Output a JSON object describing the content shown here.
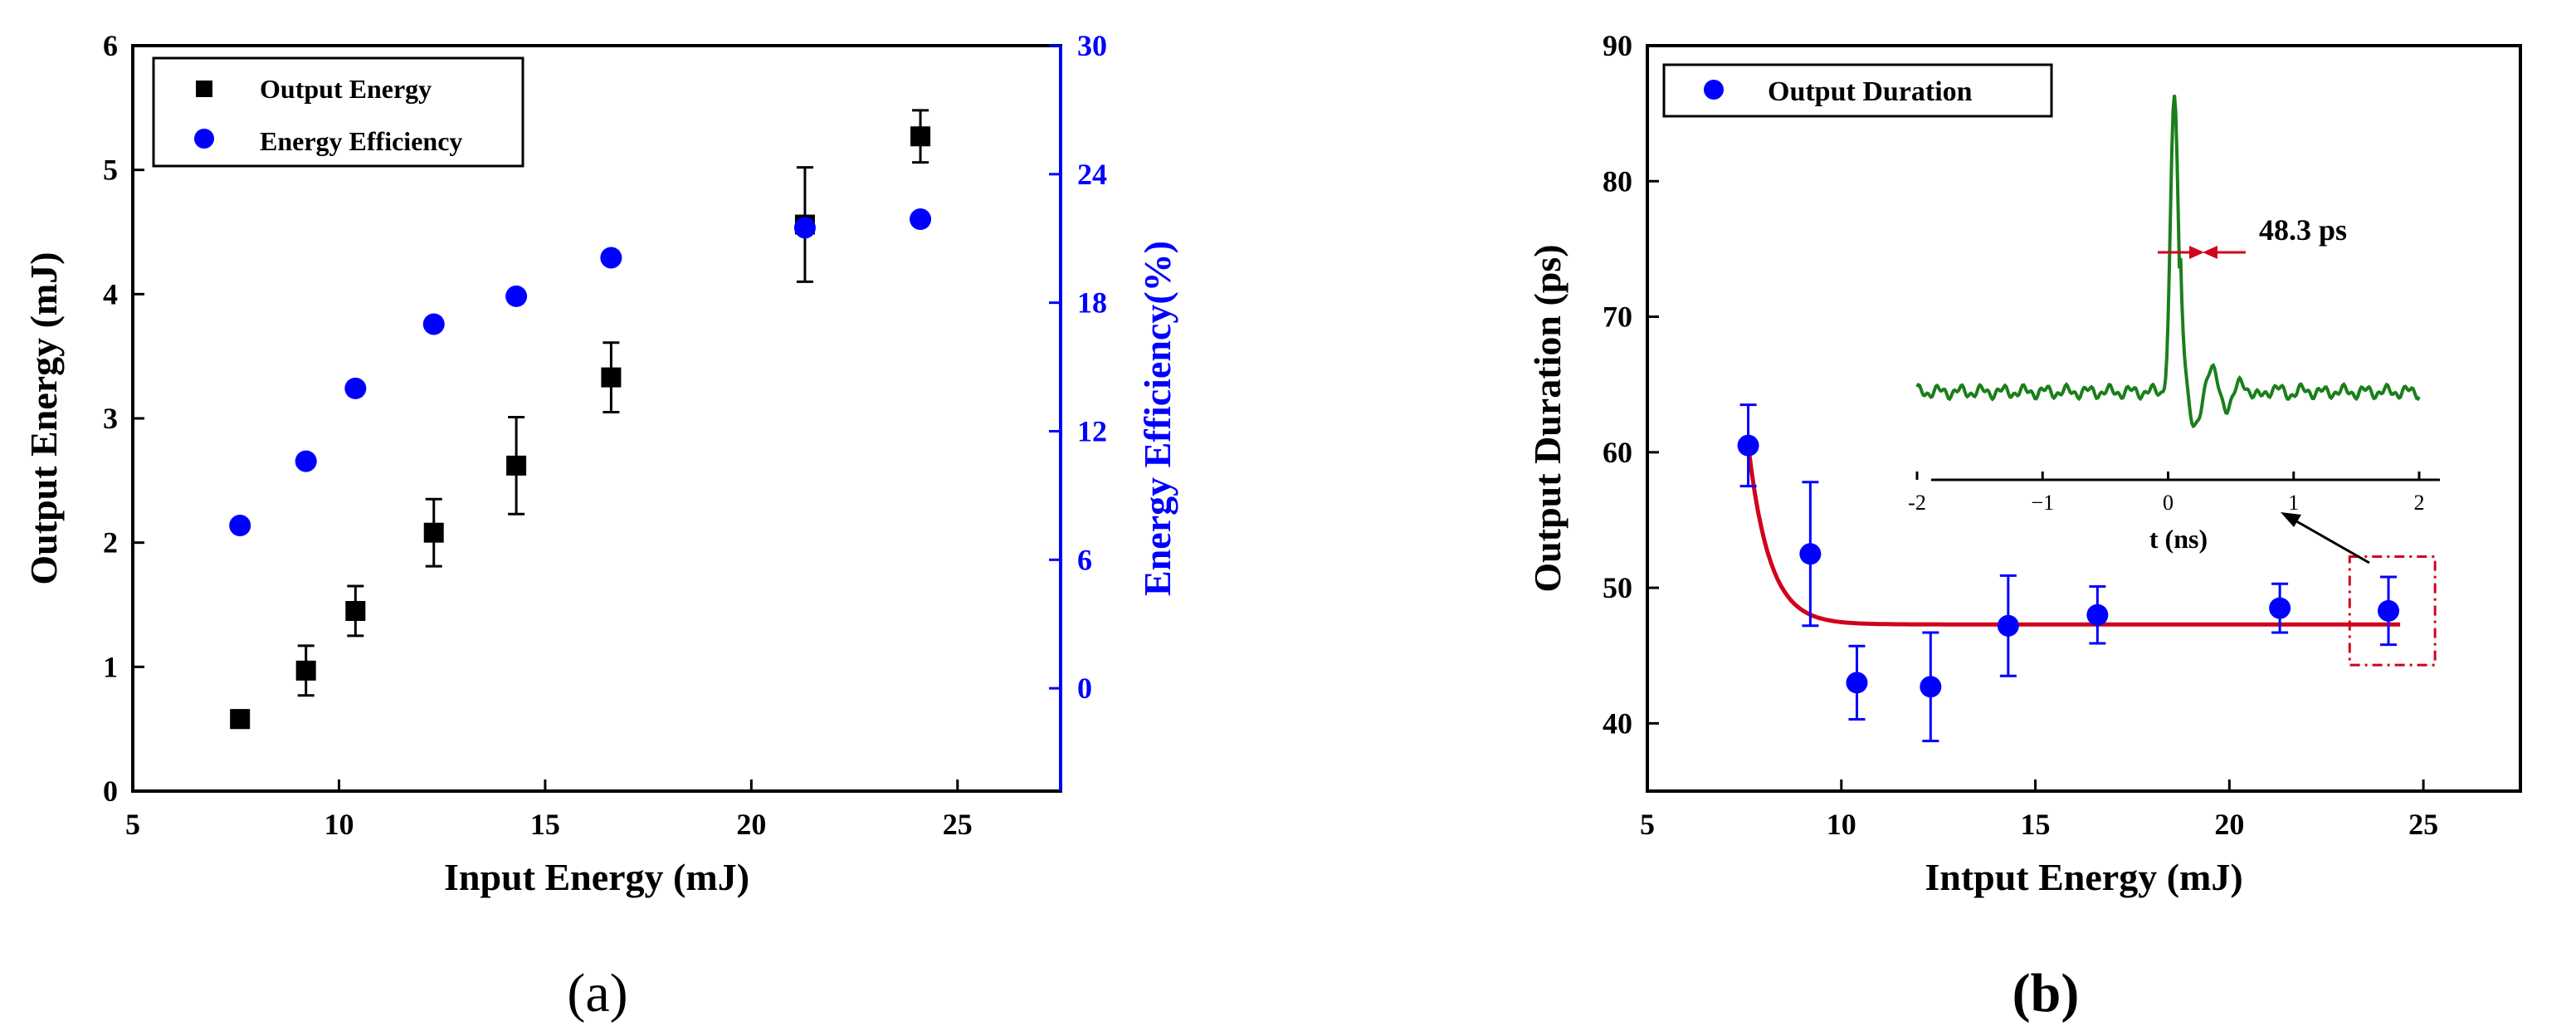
{
  "panel_labels": {
    "a": "(a)",
    "b": "(b)"
  },
  "colors": {
    "black": "#000000",
    "blue": "#0000ff",
    "red": "#d0021b",
    "green": "#1a7f1a",
    "frame": "#000000"
  },
  "chart_data": [
    {
      "id": "a",
      "type": "scatter",
      "xlabel": "Input Energy (mJ)",
      "ylabel": "Output Energy (mJ)",
      "y2label": "Energy Efficiency(%)",
      "xlim": [
        5,
        27.5
      ],
      "ylim": [
        0,
        6
      ],
      "y2lim": [
        -4.8,
        30
      ],
      "xticks": [
        5,
        10,
        15,
        20,
        25
      ],
      "yticks": [
        0,
        1,
        2,
        3,
        4,
        5,
        6
      ],
      "y2ticks": [
        0,
        6,
        12,
        18,
        24,
        30
      ],
      "legend_position": "top-left",
      "series": [
        {
          "name": "Output Energy",
          "marker": "square",
          "color": "#000000",
          "axis": "left",
          "x": [
            7.6,
            9.2,
            10.4,
            12.3,
            14.3,
            16.6,
            21.3,
            24.1
          ],
          "y": [
            0.58,
            0.97,
            1.45,
            2.08,
            2.62,
            3.33,
            4.56,
            5.27
          ],
          "err": [
            0.07,
            0.2,
            0.2,
            0.27,
            0.39,
            0.28,
            0.46,
            0.21
          ]
        },
        {
          "name": "Energy Efficiency",
          "marker": "circle",
          "color": "#0000ff",
          "axis": "right",
          "x": [
            7.6,
            9.2,
            10.4,
            12.3,
            14.3,
            16.6,
            21.3,
            24.1
          ],
          "y": [
            7.6,
            10.6,
            14.0,
            17.0,
            18.3,
            20.1,
            21.5,
            21.9
          ]
        }
      ]
    },
    {
      "id": "b",
      "type": "scatter",
      "xlabel": "Intput Energy (mJ)",
      "ylabel": "Output Duration (ps)",
      "xlim": [
        5,
        27.5
      ],
      "ylim": [
        35,
        90
      ],
      "xticks": [
        5,
        10,
        15,
        20,
        25
      ],
      "yticks": [
        40,
        50,
        60,
        70,
        80,
        90
      ],
      "legend_position": "top-left",
      "series": [
        {
          "name": "Output Duration",
          "marker": "circle",
          "color": "#0000ff",
          "x": [
            7.6,
            9.2,
            10.4,
            12.3,
            14.3,
            16.6,
            21.3,
            24.1
          ],
          "y": [
            60.5,
            52.5,
            43.0,
            42.7,
            47.2,
            48.0,
            48.5,
            48.3
          ],
          "err": [
            3.0,
            5.3,
            2.7,
            4.0,
            3.7,
            2.1,
            1.8,
            2.5
          ]
        }
      ],
      "fit": {
        "name": "exponential fit",
        "color": "#d0021b",
        "y0": 47.3,
        "A": 13.2,
        "x0": 7.6,
        "tau": 0.55,
        "x_range": [
          7.6,
          24.4
        ]
      },
      "highlight_box": {
        "x_range": [
          23.1,
          25.3
        ],
        "y_range": [
          44.3,
          52.3
        ]
      },
      "inset": {
        "type": "line",
        "xlabel": "t (ns)",
        "xlim": [
          -2,
          2
        ],
        "xticks": [
          -2,
          -1,
          0,
          1,
          2
        ],
        "xtick_labels": [
          "-2",
          "−1",
          "0",
          "1",
          "2"
        ],
        "annotation": "48.3 ps",
        "color": "#1a7f1a",
        "baseline": 0.0,
        "pulse": {
          "center": 0.05,
          "peak": 1.0,
          "sigma": 0.03
        },
        "ylim": [
          -0.25,
          1.15
        ]
      }
    }
  ]
}
